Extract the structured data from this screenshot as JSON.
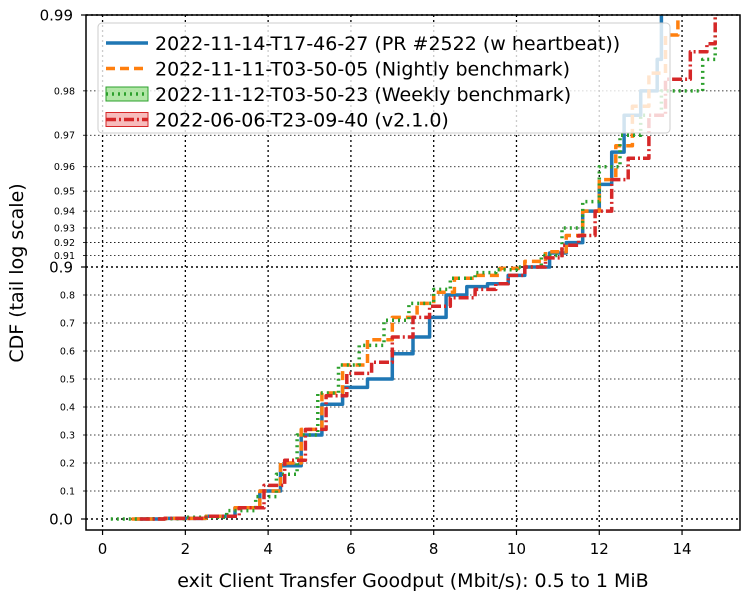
{
  "chart_data": {
    "type": "line",
    "title": "",
    "xlabel": "exit Client Transfer Goodput (Mbit/s): 0.5 to 1 MiB",
    "ylabel": "CDF (tail log scale)",
    "xlim": [
      -0.4,
      15.4
    ],
    "xticks": [
      0,
      2,
      4,
      6,
      8,
      10,
      12,
      14
    ],
    "yscale": "tail-log (linear 0–0.9, log-tail 0.9–0.99)",
    "ylim": [
      -0.02,
      0.99
    ],
    "yticks_major": [
      {
        "value": 0.0,
        "label": "0.0"
      },
      {
        "value": 0.9,
        "label": "0.9"
      },
      {
        "value": 0.99,
        "label": "0.99"
      }
    ],
    "yticks_minor": [
      {
        "value": 0.1,
        "label": "0.1"
      },
      {
        "value": 0.2,
        "label": "0.2"
      },
      {
        "value": 0.3,
        "label": "0.3"
      },
      {
        "value": 0.4,
        "label": "0.4"
      },
      {
        "value": 0.5,
        "label": "0.5"
      },
      {
        "value": 0.6,
        "label": "0.6"
      },
      {
        "value": 0.7,
        "label": "0.7"
      },
      {
        "value": 0.8,
        "label": "0.8"
      },
      {
        "value": 0.91,
        "label": "0.91"
      },
      {
        "value": 0.92,
        "label": "0.92"
      },
      {
        "value": 0.93,
        "label": "0.93"
      },
      {
        "value": 0.94,
        "label": "0.94"
      },
      {
        "value": 0.95,
        "label": "0.95"
      },
      {
        "value": 0.96,
        "label": "0.96"
      },
      {
        "value": 0.97,
        "label": "0.97"
      },
      {
        "value": 0.98,
        "label": "0.98"
      }
    ],
    "grid": true,
    "legend_position": "top-left",
    "series": [
      {
        "name": "2022-11-14-T17-46-27 (PR #2522 (w heartbeat))",
        "color": "#1f77b4",
        "dash": "",
        "points": [
          [
            0.8,
            0.0
          ],
          [
            1.5,
            0.002
          ],
          [
            2.5,
            0.01
          ],
          [
            3.2,
            0.04
          ],
          [
            3.8,
            0.1
          ],
          [
            4.3,
            0.19
          ],
          [
            4.8,
            0.3
          ],
          [
            5.3,
            0.41
          ],
          [
            5.8,
            0.47
          ],
          [
            6.4,
            0.5
          ],
          [
            7.0,
            0.59
          ],
          [
            7.5,
            0.65
          ],
          [
            7.9,
            0.72
          ],
          [
            8.3,
            0.8
          ],
          [
            8.8,
            0.83
          ],
          [
            9.3,
            0.84
          ],
          [
            9.8,
            0.87
          ],
          [
            10.2,
            0.9
          ],
          [
            10.8,
            0.912
          ],
          [
            11.2,
            0.92
          ],
          [
            11.6,
            0.94
          ],
          [
            12.0,
            0.953
          ],
          [
            12.3,
            0.965
          ],
          [
            12.6,
            0.975
          ],
          [
            13.0,
            0.98
          ],
          [
            13.4,
            0.985
          ],
          [
            13.5,
            0.99
          ]
        ]
      },
      {
        "name": "2022-11-11-T03-50-05 (Nightly benchmark)",
        "color": "#ff7f0e",
        "dash": "9,5",
        "points": [
          [
            0.7,
            0.0
          ],
          [
            1.5,
            0.002
          ],
          [
            2.5,
            0.01
          ],
          [
            3.2,
            0.04
          ],
          [
            3.8,
            0.1
          ],
          [
            4.3,
            0.2
          ],
          [
            4.8,
            0.32
          ],
          [
            5.3,
            0.45
          ],
          [
            5.8,
            0.55
          ],
          [
            6.4,
            0.64
          ],
          [
            7.0,
            0.72
          ],
          [
            7.6,
            0.77
          ],
          [
            8.0,
            0.81
          ],
          [
            8.5,
            0.86
          ],
          [
            9.0,
            0.87
          ],
          [
            9.6,
            0.895
          ],
          [
            10.2,
            0.905
          ],
          [
            10.7,
            0.913
          ],
          [
            11.2,
            0.925
          ],
          [
            11.6,
            0.94
          ],
          [
            12.0,
            0.955
          ],
          [
            12.4,
            0.967
          ],
          [
            12.8,
            0.977
          ],
          [
            13.2,
            0.983
          ],
          [
            13.6,
            0.988
          ],
          [
            13.9,
            0.99
          ]
        ]
      },
      {
        "name": "2022-11-12-T03-50-23 (Weekly benchmark)",
        "color": "#2ca02c",
        "dash": "2,4",
        "points": [
          [
            0.2,
            0.0
          ],
          [
            1.0,
            0.001
          ],
          [
            2.0,
            0.006
          ],
          [
            3.0,
            0.03
          ],
          [
            3.7,
            0.08
          ],
          [
            4.2,
            0.16
          ],
          [
            4.7,
            0.3
          ],
          [
            5.2,
            0.45
          ],
          [
            5.7,
            0.55
          ],
          [
            6.2,
            0.62
          ],
          [
            6.8,
            0.71
          ],
          [
            7.4,
            0.77
          ],
          [
            8.0,
            0.82
          ],
          [
            8.4,
            0.86
          ],
          [
            9.0,
            0.88
          ],
          [
            9.5,
            0.89
          ],
          [
            10.0,
            0.9
          ],
          [
            10.6,
            0.91
          ],
          [
            11.1,
            0.93
          ],
          [
            11.6,
            0.945
          ],
          [
            12.0,
            0.96
          ],
          [
            12.5,
            0.97
          ],
          [
            13.0,
            0.975
          ],
          [
            13.5,
            0.98
          ],
          [
            14.0,
            0.98
          ],
          [
            14.5,
            0.985
          ],
          [
            14.8,
            0.99
          ]
        ]
      },
      {
        "name": "2022-06-06-T23-09-40 (v2.1.0)",
        "color": "#d62728",
        "dash": "10,3,2,3",
        "points": [
          [
            0.9,
            0.0
          ],
          [
            1.5,
            0.002
          ],
          [
            2.5,
            0.01
          ],
          [
            3.3,
            0.04
          ],
          [
            3.9,
            0.12
          ],
          [
            4.4,
            0.21
          ],
          [
            4.9,
            0.32
          ],
          [
            5.4,
            0.44
          ],
          [
            5.9,
            0.52
          ],
          [
            6.5,
            0.56
          ],
          [
            7.0,
            0.65
          ],
          [
            7.5,
            0.72
          ],
          [
            7.9,
            0.76
          ],
          [
            8.4,
            0.79
          ],
          [
            9.0,
            0.82
          ],
          [
            9.5,
            0.84
          ],
          [
            9.8,
            0.87
          ],
          [
            10.2,
            0.9
          ],
          [
            10.7,
            0.908
          ],
          [
            11.1,
            0.918
          ],
          [
            11.5,
            0.925
          ],
          [
            11.9,
            0.94
          ],
          [
            12.3,
            0.955
          ],
          [
            12.7,
            0.963
          ],
          [
            13.2,
            0.975
          ],
          [
            13.6,
            0.982
          ],
          [
            14.2,
            0.986
          ],
          [
            14.6,
            0.987
          ],
          [
            14.8,
            0.99
          ]
        ]
      }
    ]
  }
}
